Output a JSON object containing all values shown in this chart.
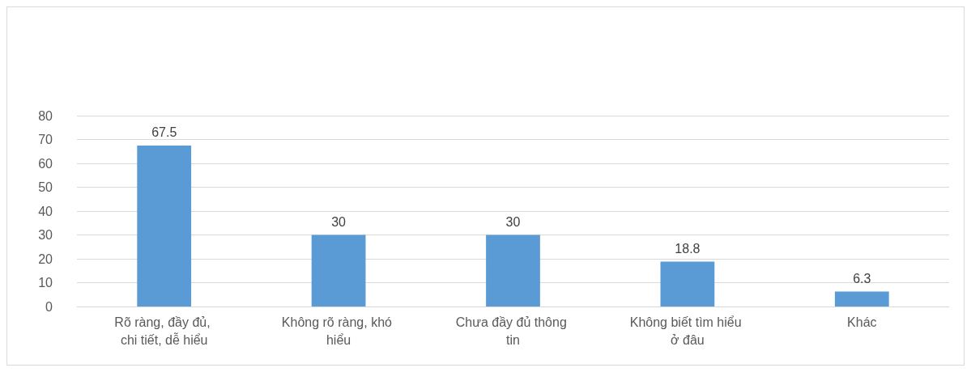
{
  "chart_data": {
    "type": "bar",
    "categories": [
      "Rõ ràng, đầy đủ, chi tiết, dễ hiểu",
      "Không rõ ràng, khó hiểu",
      "Chưa đầy đủ thông tin",
      "Không biết tìm hiểu ở đâu",
      "Khác"
    ],
    "values": [
      67.5,
      30,
      30,
      18.8,
      6.3
    ],
    "color": "#5b9bd5",
    "ylim": [
      0,
      80
    ],
    "yticks": [
      0,
      10,
      20,
      30,
      40,
      50,
      60,
      70,
      80
    ],
    "grid": "y",
    "data_labels": true
  }
}
